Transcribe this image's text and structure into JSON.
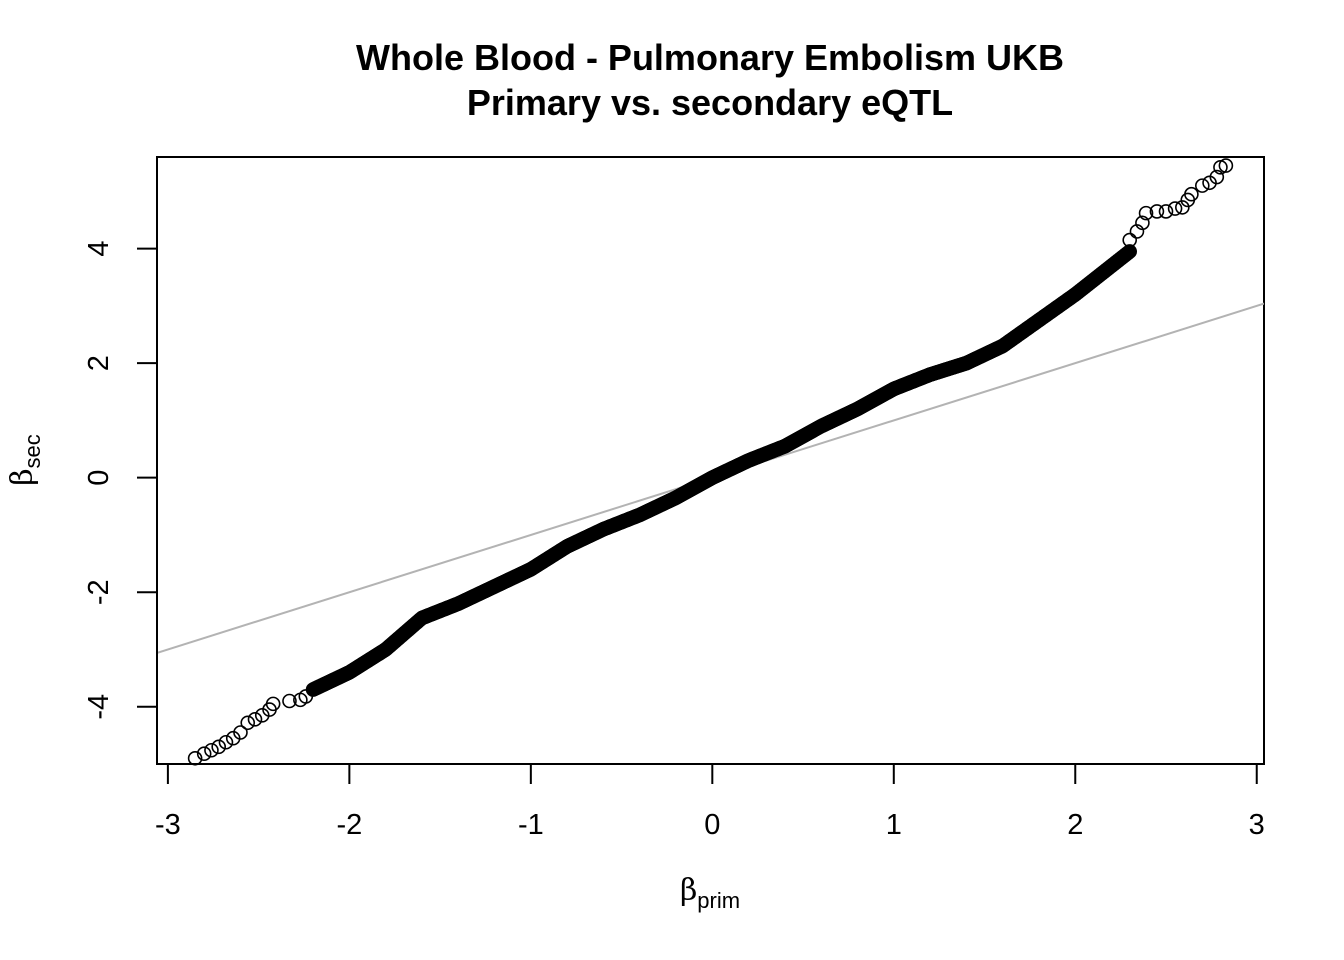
{
  "chart_data": {
    "type": "scatter",
    "title": "Whole Blood - Pulmonary Embolism UKB",
    "subtitle": "Primary vs. secondary eQTL",
    "xlabel": {
      "symbol": "β",
      "subscript": "prim"
    },
    "ylabel": {
      "symbol": "β",
      "subscript": "sec"
    },
    "xlim": [
      -3.06,
      3.04
    ],
    "ylim": [
      -5.0,
      5.6
    ],
    "xticks": [
      -3,
      -2,
      -1,
      0,
      1,
      2,
      3
    ],
    "xtick_labels": [
      "-3",
      "-2",
      "-1",
      "0",
      "1",
      "2",
      "3"
    ],
    "yticks": [
      -4,
      -2,
      0,
      2,
      4
    ],
    "ytick_labels": [
      "-4",
      "-2",
      "0",
      "2",
      "4"
    ],
    "grid": false,
    "legend": "none",
    "reference_line": {
      "slope": 1,
      "intercept": 0,
      "color": "#b3b3b3"
    },
    "point_color": "#000000",
    "point_marker": "open-circle",
    "curve_knots": {
      "x": [
        -2.85,
        -2.6,
        -2.4,
        -2.2,
        -2.0,
        -1.8,
        -1.6,
        -1.4,
        -1.2,
        -1.0,
        -0.8,
        -0.6,
        -0.4,
        -0.2,
        0.0,
        0.2,
        0.4,
        0.6,
        0.8,
        1.0,
        1.2,
        1.4,
        1.6,
        1.8,
        2.0,
        2.2,
        2.4,
        2.6,
        2.8
      ],
      "y": [
        -4.9,
        -4.3,
        -4.0,
        -3.7,
        -3.4,
        -3.0,
        -2.45,
        -2.2,
        -1.9,
        -1.6,
        -1.2,
        -0.9,
        -0.65,
        -0.35,
        0.0,
        0.3,
        0.55,
        0.9,
        1.2,
        1.55,
        1.8,
        2.0,
        2.3,
        2.75,
        3.2,
        3.7,
        4.2,
        4.8,
        5.45
      ]
    },
    "sparse_points": [
      [
        -2.85,
        -4.9
      ],
      [
        -2.8,
        -4.82
      ],
      [
        -2.76,
        -4.76
      ],
      [
        -2.72,
        -4.7
      ],
      [
        -2.68,
        -4.62
      ],
      [
        -2.64,
        -4.55
      ],
      [
        -2.6,
        -4.45
      ],
      [
        -2.56,
        -4.28
      ],
      [
        -2.52,
        -4.22
      ],
      [
        -2.48,
        -4.15
      ],
      [
        -2.44,
        -4.05
      ],
      [
        -2.42,
        -3.95
      ],
      [
        -2.33,
        -3.9
      ],
      [
        -2.27,
        -3.88
      ],
      [
        -2.24,
        -3.82
      ],
      [
        2.3,
        4.15
      ],
      [
        2.34,
        4.3
      ],
      [
        2.37,
        4.45
      ],
      [
        2.39,
        4.62
      ],
      [
        2.45,
        4.65
      ],
      [
        2.5,
        4.65
      ],
      [
        2.55,
        4.7
      ],
      [
        2.59,
        4.72
      ],
      [
        2.62,
        4.85
      ],
      [
        2.64,
        4.95
      ],
      [
        2.7,
        5.1
      ],
      [
        2.74,
        5.15
      ],
      [
        2.78,
        5.25
      ],
      [
        2.8,
        5.42
      ],
      [
        2.83,
        5.45
      ]
    ]
  }
}
